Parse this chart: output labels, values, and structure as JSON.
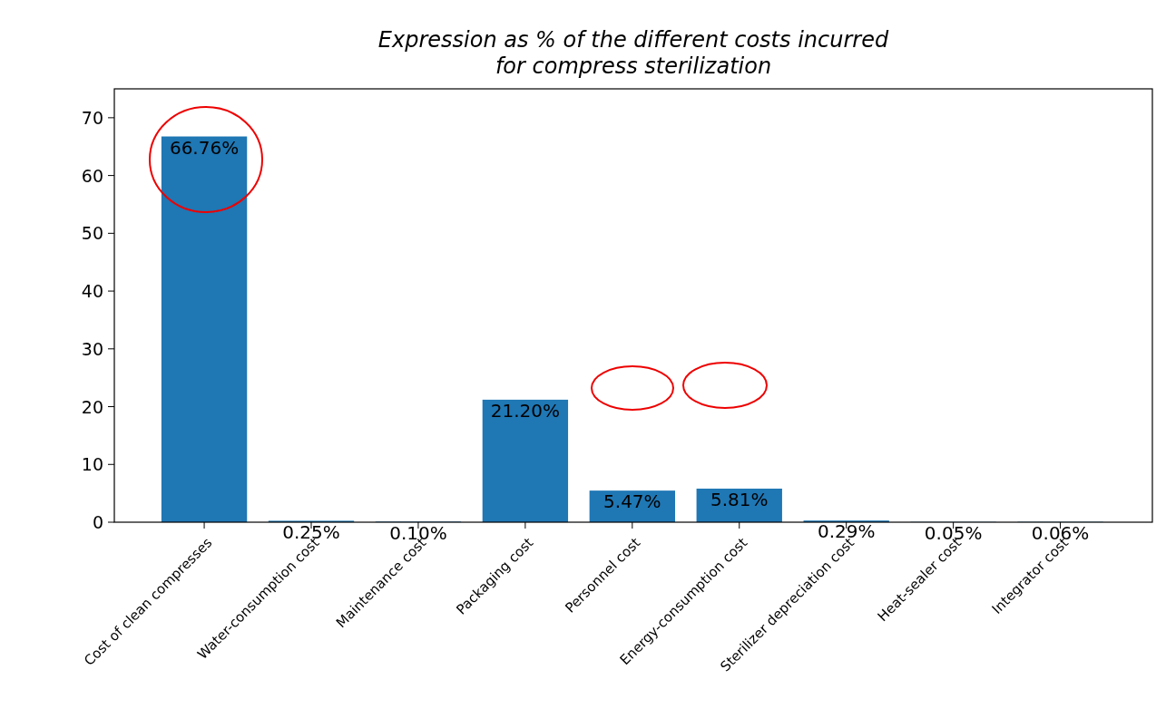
{
  "chart_data": {
    "type": "bar",
    "title": "Expression as % of the different costs incurred\nfor compress sterilization",
    "categories": [
      "Cost of clean compresses",
      "Water-consumption cost",
      "Maintenance cost",
      "Packaging cost",
      "Personnel cost",
      "Energy-consumption cost",
      "Sterilizer depreciation cost",
      "Heat-sealer cost",
      "Integrator cost"
    ],
    "values": [
      66.76,
      0.25,
      0.1,
      21.2,
      5.47,
      5.81,
      0.29,
      0.05,
      0.06
    ],
    "value_labels": [
      "66.76%",
      "0.25%",
      "0.10%",
      "21.20%",
      "5.47%",
      "5.81%",
      "0.29%",
      "0.05%",
      "0.06%"
    ],
    "color": "#1f77b4",
    "ylim": [
      0,
      75
    ],
    "yticks": [
      0,
      10,
      20,
      30,
      40,
      50,
      60,
      70
    ]
  }
}
